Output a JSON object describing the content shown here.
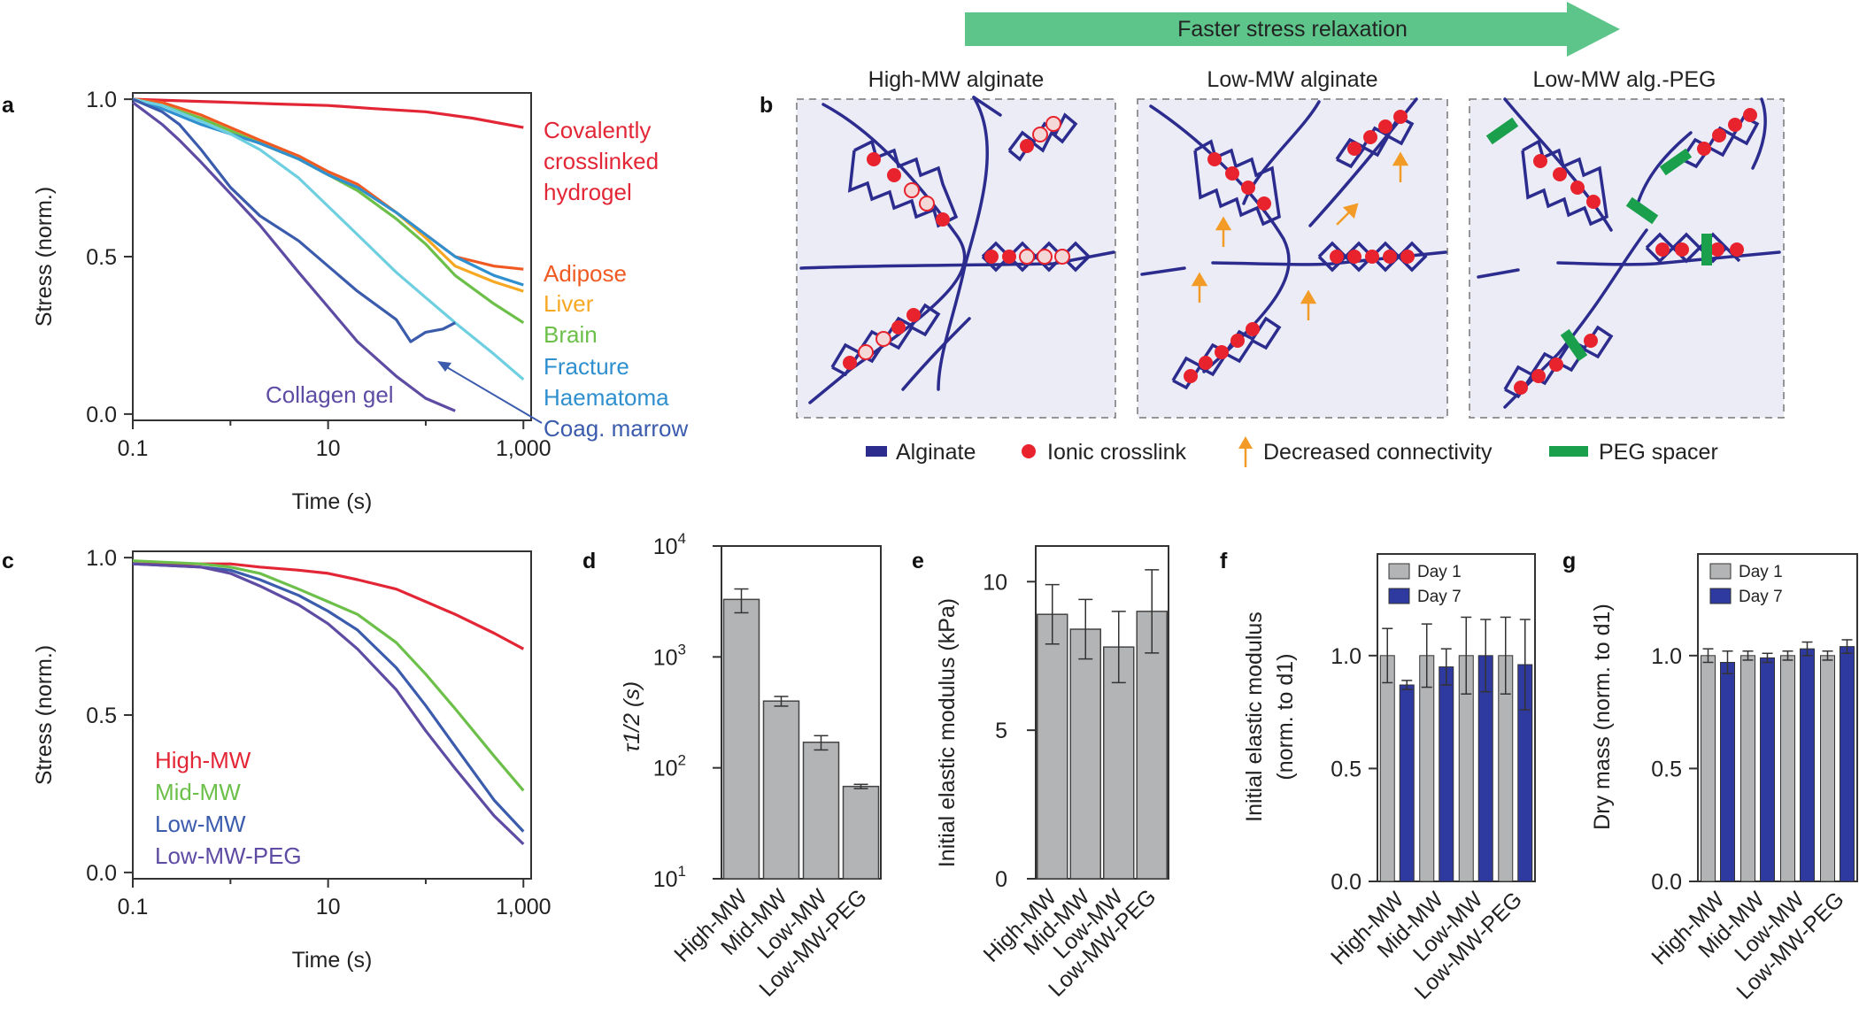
{
  "header": {
    "arrow_label": "Faster stress relaxation",
    "arrow_color": "#5dc48a"
  },
  "panel_labels": {
    "a": "a",
    "b": "b",
    "c": "c",
    "d": "d",
    "e": "e",
    "f": "f",
    "g": "g"
  },
  "colors": {
    "red": "#e32636",
    "orange": "#f05a22",
    "yellow": "#f7a823",
    "green": "#6cc04a",
    "blue": "#2f8fcf",
    "cyan": "#6dcfe0",
    "navy": "#3b5bad",
    "purple": "#5e4ba3",
    "alginate": "#2b2c8e",
    "crosslink": "#e8232d",
    "peg": "#1aa04d",
    "gray": "#b3b4b6",
    "day7": "#2f3aa0"
  },
  "panel_b": {
    "titles": [
      "High-MW alginate",
      "Low-MW alginate",
      "Low-MW alg.-PEG"
    ],
    "legend": {
      "alginate": "Alginate",
      "crosslink": "Ionic crosslink",
      "connectivity": "Decreased connectivity",
      "peg": "PEG spacer"
    }
  },
  "chart_data": [
    {
      "id": "a",
      "type": "line",
      "xlabel": "Time (s)",
      "ylabel": "Stress (norm.)",
      "xscale": "log",
      "xlim": [
        0.1,
        1200
      ],
      "ylim": [
        -0.02,
        1.02
      ],
      "xticks": [
        0.1,
        10,
        1000
      ],
      "xtick_labels": [
        "0.1",
        "10",
        "1,000"
      ],
      "yticks": [
        0.0,
        0.5,
        1.0
      ],
      "ytick_labels": [
        "0.0",
        "0.5",
        "1.0"
      ],
      "annotation": "Coag. marrow",
      "series": [
        {
          "name": "Covalently crosslinked hydrogel",
          "label_lines": [
            "Covalently",
            "crosslinked",
            "hydrogel"
          ],
          "color": "#e32636",
          "x": [
            0.1,
            0.3,
            1,
            3,
            10,
            30,
            100,
            300,
            1000
          ],
          "y": [
            1.0,
            0.995,
            0.99,
            0.985,
            0.98,
            0.97,
            0.96,
            0.94,
            0.91
          ]
        },
        {
          "name": "Adipose",
          "color": "#f05a22",
          "x": [
            0.1,
            0.2,
            0.5,
            1,
            2,
            5,
            10,
            20,
            50,
            100,
            200,
            500,
            1000
          ],
          "y": [
            1.0,
            0.99,
            0.95,
            0.91,
            0.87,
            0.82,
            0.77,
            0.73,
            0.64,
            0.57,
            0.5,
            0.47,
            0.46
          ]
        },
        {
          "name": "Liver",
          "color": "#f7a823",
          "x": [
            0.1,
            0.2,
            0.5,
            1,
            2,
            5,
            10,
            20,
            50,
            100,
            200,
            500,
            1000
          ],
          "y": [
            1.0,
            0.98,
            0.94,
            0.9,
            0.86,
            0.81,
            0.76,
            0.72,
            0.64,
            0.56,
            0.47,
            0.42,
            0.39
          ]
        },
        {
          "name": "Brain",
          "color": "#6cc04a",
          "x": [
            0.1,
            0.2,
            0.5,
            1,
            2,
            5,
            10,
            20,
            50,
            100,
            200,
            500,
            1000
          ],
          "y": [
            1.0,
            0.98,
            0.94,
            0.9,
            0.86,
            0.81,
            0.76,
            0.71,
            0.62,
            0.54,
            0.44,
            0.35,
            0.29
          ]
        },
        {
          "name": "Fracture",
          "color": "#2f8fcf",
          "x": [
            0.1,
            0.2,
            0.5,
            1,
            2,
            5,
            10,
            20,
            50,
            100,
            200,
            500,
            1000
          ],
          "y": [
            1.0,
            0.97,
            0.92,
            0.89,
            0.86,
            0.81,
            0.76,
            0.72,
            0.64,
            0.57,
            0.5,
            0.44,
            0.41
          ]
        },
        {
          "name": "Haematoma",
          "color": "#6dcfe0",
          "x": [
            0.1,
            0.2,
            0.5,
            1,
            2,
            5,
            10,
            20,
            50,
            100,
            200,
            500,
            1000
          ],
          "y": [
            1.0,
            0.98,
            0.93,
            0.89,
            0.84,
            0.75,
            0.66,
            0.57,
            0.45,
            0.37,
            0.29,
            0.19,
            0.11
          ]
        },
        {
          "name": "Coag. marrow",
          "color": "#3b5bad",
          "x": [
            0.1,
            0.2,
            0.3,
            0.5,
            1,
            2,
            5,
            10,
            20,
            50,
            70,
            100,
            150,
            200
          ],
          "y": [
            1.0,
            0.96,
            0.92,
            0.84,
            0.72,
            0.63,
            0.55,
            0.47,
            0.39,
            0.3,
            0.23,
            0.26,
            0.27,
            0.29
          ]
        },
        {
          "name": "Collagen gel",
          "color": "#5e4ba3",
          "x": [
            0.1,
            0.2,
            0.3,
            0.5,
            1,
            2,
            5,
            10,
            20,
            50,
            100,
            200
          ],
          "y": [
            0.99,
            0.92,
            0.87,
            0.8,
            0.7,
            0.6,
            0.45,
            0.34,
            0.23,
            0.12,
            0.05,
            0.01
          ]
        }
      ]
    },
    {
      "id": "c",
      "type": "line",
      "xlabel": "Time (s)",
      "ylabel": "Stress (norm.)",
      "xscale": "log",
      "xlim": [
        0.1,
        1200
      ],
      "ylim": [
        -0.02,
        1.02
      ],
      "xticks": [
        0.1,
        10,
        1000
      ],
      "xtick_labels": [
        "0.1",
        "10",
        "1,000"
      ],
      "yticks": [
        0.0,
        0.5,
        1.0
      ],
      "ytick_labels": [
        "0.0",
        "0.5",
        "1.0"
      ],
      "series": [
        {
          "name": "High-MW",
          "color": "#e32636",
          "x": [
            0.1,
            0.5,
            1,
            2,
            5,
            10,
            20,
            50,
            100,
            200,
            500,
            1000
          ],
          "y": [
            0.98,
            0.98,
            0.98,
            0.97,
            0.96,
            0.95,
            0.93,
            0.9,
            0.86,
            0.82,
            0.76,
            0.71
          ]
        },
        {
          "name": "Mid-MW",
          "color": "#6cc04a",
          "x": [
            0.1,
            0.5,
            1,
            2,
            5,
            10,
            20,
            50,
            100,
            200,
            500,
            1000
          ],
          "y": [
            0.99,
            0.98,
            0.97,
            0.95,
            0.9,
            0.86,
            0.82,
            0.73,
            0.63,
            0.52,
            0.37,
            0.26
          ]
        },
        {
          "name": "Low-MW",
          "color": "#3b5bad",
          "x": [
            0.1,
            0.5,
            1,
            2,
            5,
            10,
            20,
            50,
            100,
            200,
            500,
            1000
          ],
          "y": [
            0.98,
            0.97,
            0.96,
            0.93,
            0.88,
            0.83,
            0.77,
            0.65,
            0.53,
            0.4,
            0.23,
            0.13
          ]
        },
        {
          "name": "Low-MW-PEG",
          "color": "#5e4ba3",
          "x": [
            0.1,
            0.5,
            1,
            2,
            5,
            10,
            20,
            50,
            100,
            200,
            500,
            1000
          ],
          "y": [
            0.98,
            0.97,
            0.95,
            0.91,
            0.85,
            0.79,
            0.71,
            0.58,
            0.45,
            0.33,
            0.18,
            0.09
          ]
        }
      ]
    },
    {
      "id": "d",
      "type": "bar",
      "yscale": "log",
      "ylabel": "τ1/2 (s)",
      "ylim": [
        10,
        10000
      ],
      "yticks": [
        10,
        100,
        1000,
        10000
      ],
      "ytick_base": [
        "10",
        "10",
        "10",
        "10"
      ],
      "ytick_exp": [
        "1",
        "2",
        "3",
        "4"
      ],
      "categories": [
        "High-MW",
        "Mid-MW",
        "Low-MW",
        "Low-MW-PEG"
      ],
      "values": [
        3300,
        400,
        170,
        68
      ],
      "err": [
        800,
        40,
        25,
        3
      ],
      "color": "#b3b4b6"
    },
    {
      "id": "e",
      "type": "bar",
      "ylabel": "Initial elastic modulus (kPa)",
      "ylim": [
        0,
        11.2
      ],
      "yticks": [
        0,
        5,
        10
      ],
      "ytick_labels": [
        "0",
        "5",
        "10"
      ],
      "categories": [
        "High-MW",
        "Mid-MW",
        "Low-MW",
        "Low-MW-PEG"
      ],
      "values": [
        8.9,
        8.4,
        7.8,
        9.0
      ],
      "err": [
        1.0,
        1.0,
        1.2,
        1.4
      ],
      "color": "#b3b4b6"
    },
    {
      "id": "f",
      "type": "bar",
      "ylabel_lines": [
        "Initial elastic modulus",
        "(norm. to d1)"
      ],
      "ylim": [
        0,
        1.45
      ],
      "yticks": [
        0.0,
        0.5,
        1.0
      ],
      "ytick_labels": [
        "0.0",
        "0.5",
        "1.0"
      ],
      "categories": [
        "High-MW",
        "Mid-MW",
        "Low-MW",
        "Low-MW-PEG"
      ],
      "series": [
        {
          "name": "Day 1",
          "color": "#b3b4b6",
          "values": [
            1.0,
            1.0,
            1.0,
            1.0
          ],
          "err": [
            0.12,
            0.14,
            0.17,
            0.17
          ]
        },
        {
          "name": "Day 7",
          "color": "#2f3aa0",
          "values": [
            0.87,
            0.95,
            1.0,
            0.96
          ],
          "err": [
            0.02,
            0.08,
            0.16,
            0.2
          ]
        }
      ]
    },
    {
      "id": "g",
      "type": "bar",
      "ylabel": "Dry mass (norm. to d1)",
      "ylim": [
        0,
        1.45
      ],
      "yticks": [
        0.0,
        0.5,
        1.0
      ],
      "ytick_labels": [
        "0.0",
        "0.5",
        "1.0"
      ],
      "categories": [
        "High-MW",
        "Mid-MW",
        "Low-MW",
        "Low-MW-PEG"
      ],
      "series": [
        {
          "name": "Day 1",
          "color": "#b3b4b6",
          "values": [
            1.0,
            1.0,
            1.0,
            1.0
          ],
          "err": [
            0.03,
            0.02,
            0.02,
            0.02
          ]
        },
        {
          "name": "Day 7",
          "color": "#2f3aa0",
          "values": [
            0.97,
            0.99,
            1.03,
            1.04
          ],
          "err": [
            0.05,
            0.02,
            0.03,
            0.03
          ]
        }
      ]
    }
  ]
}
